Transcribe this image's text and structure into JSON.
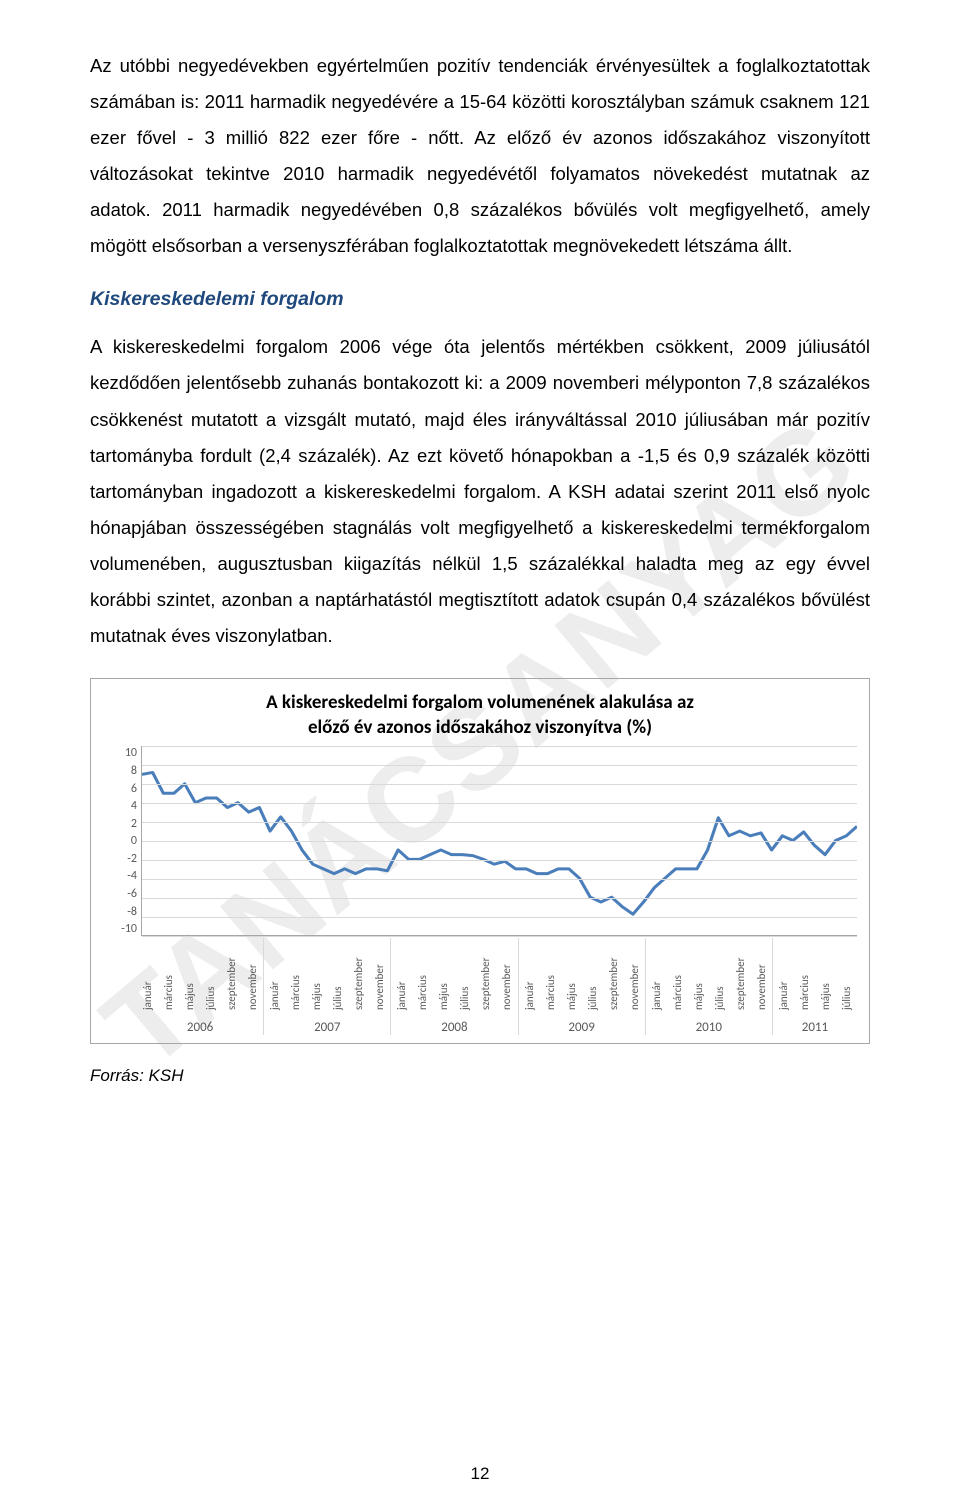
{
  "watermark": "TANÁCSANYAG",
  "para1": "Az utóbbi negyedévekben egyértelműen pozitív tendenciák érvényesültek a foglalkoztatottak számában is: 2011 harmadik negyedévére a 15-64 közötti korosztályban számuk csaknem 121 ezer fővel - 3 millió 822 ezer főre - nőtt. Az előző év azonos időszakához viszonyított változásokat tekintve 2010 harmadik negyedévétől folyamatos növekedést mutatnak az adatok. 2011 harmadik negyedévében 0,8 százalékos bővülés volt megfigyelhető, amely mögött elsősorban a versenyszférában foglalkoztatottak megnövekedett létszáma állt.",
  "section_heading": "Kiskereskedelemi forgalom",
  "section_heading_color": "#1f497d",
  "para2": "A kiskereskedelmi forgalom 2006 vége óta jelentős mértékben csökkent, 2009 júliusától kezdődően jelentősebb zuhanás bontakozott ki: a 2009 novemberi mélyponton 7,8 százalékos csökkenést mutatott a vizsgált mutató, majd éles irányváltással 2010 júliusában már pozitív tartományba fordult (2,4 százalék). Az ezt követő hónapokban a -1,5 és 0,9 százalék közötti tartományban ingadozott a kiskereskedelmi forgalom. A KSH adatai szerint 2011 első nyolc hónapjában összességében stagnálás volt megfigyelhető a kiskereskedelmi termékforgalom volumenében, augusztusban kiigazítás nélkül 1,5 százalékkal haladta meg az egy évvel korábbi szintet, azonban a naptárhatástól megtisztított adatok csupán 0,4 százalékos bővülést mutatnak éves viszonylatban.",
  "chart": {
    "type": "line",
    "title_line1": "A kiskereskedelmi forgalom volumenének alakulása az",
    "title_line2": "előző év azonos időszakához viszonyítva (%)",
    "title_fontsize": 19,
    "ylim": [
      -10,
      10
    ],
    "ytick_step": 2,
    "yticks": [
      10,
      8,
      6,
      4,
      2,
      0,
      -2,
      -4,
      -6,
      -8,
      -10
    ],
    "line_color": "#4a7ebb",
    "line_width": 3,
    "grid_color": "#d9d9d9",
    "axis_color": "#a6a6a6",
    "text_color": "#595959",
    "background_color": "#ffffff",
    "x_years": [
      {
        "year": "2006",
        "months": [
          "január",
          "március",
          "május",
          "július",
          "szeptember",
          "november"
        ]
      },
      {
        "year": "2007",
        "months": [
          "január",
          "március",
          "május",
          "július",
          "szeptember",
          "november"
        ]
      },
      {
        "year": "2008",
        "months": [
          "január",
          "március",
          "május",
          "július",
          "szeptember",
          "november"
        ]
      },
      {
        "year": "2009",
        "months": [
          "január",
          "március",
          "május",
          "július",
          "szeptember",
          "november"
        ]
      },
      {
        "year": "2010",
        "months": [
          "január",
          "március",
          "május",
          "július",
          "szeptember",
          "november"
        ]
      },
      {
        "year": "2011",
        "months": [
          "január",
          "március",
          "május",
          "július"
        ]
      }
    ],
    "values": [
      7.0,
      7.2,
      5.0,
      5.0,
      6.0,
      4.0,
      4.5,
      4.5,
      3.5,
      4.0,
      3.0,
      3.5,
      1.0,
      2.5,
      1.0,
      -1.0,
      -2.5,
      -3.0,
      -3.5,
      -3.0,
      -3.5,
      -3.0,
      -3.0,
      -3.2,
      -1.0,
      -2.0,
      -2.0,
      -1.5,
      -1.0,
      -1.5,
      -1.5,
      -1.6,
      -2.0,
      -2.5,
      -2.2,
      -3.0,
      -3.0,
      -3.5,
      -3.5,
      -3.0,
      -3.0,
      -4.0,
      -6.0,
      -6.5,
      -6.0,
      -7.0,
      -7.8,
      -6.5,
      -5.0,
      -4.0,
      -3.0,
      -3.0,
      -3.0,
      -1.0,
      2.4,
      0.5,
      1.0,
      0.5,
      0.8,
      -1.0,
      0.5,
      0.0,
      0.9,
      -0.5,
      -1.5,
      0.0,
      0.5,
      1.5
    ]
  },
  "source_label": "Forrás: KSH",
  "page_number": "12"
}
